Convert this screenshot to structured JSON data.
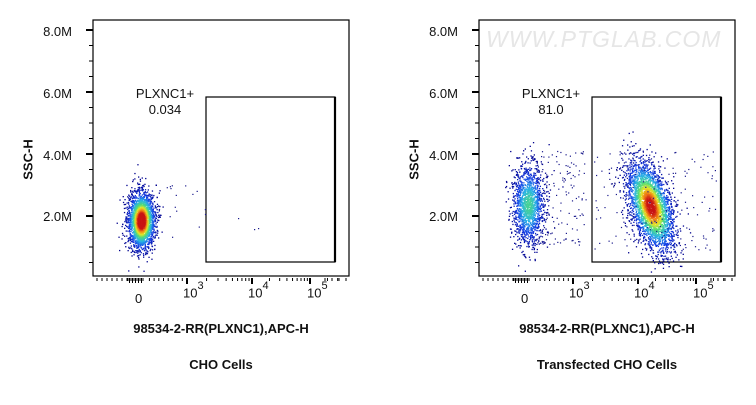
{
  "chart_data": [
    {
      "type": "scatter",
      "subtype": "flow-cytometry-density-plot",
      "title": "CHO Cells",
      "xlabel": "98534-2-RR(PLXNC1),APC-H",
      "ylabel": "SSC-H",
      "x_scale": "biexponential",
      "x_ticks": [
        "0",
        "10^3",
        "10^4",
        "10^5"
      ],
      "y_ticks": [
        "2.0M",
        "4.0M",
        "6.0M",
        "8.0M"
      ],
      "ylim": [
        0,
        8500000
      ],
      "gate": {
        "name": "PLXNC1+",
        "percent": 0.034,
        "x_range": [
          "~10^3",
          "~2x10^5"
        ],
        "y_range": [
          500000,
          5900000
        ]
      },
      "populations": [
        {
          "name": "negative",
          "x_center": "0",
          "y_center": 1600000,
          "y_spread": [
            800000,
            3100000
          ],
          "density": "high"
        }
      ],
      "grid": false,
      "legend": null
    },
    {
      "type": "scatter",
      "subtype": "flow-cytometry-density-plot",
      "title": "Transfected CHO Cells",
      "xlabel": "98534-2-RR(PLXNC1),APC-H",
      "ylabel": "SSC-H",
      "x_scale": "biexponential",
      "x_ticks": [
        "0",
        "10^3",
        "10^4",
        "10^5"
      ],
      "y_ticks": [
        "2.0M",
        "4.0M",
        "6.0M",
        "8.0M"
      ],
      "ylim": [
        0,
        8500000
      ],
      "gate": {
        "name": "PLXNC1+",
        "percent": 81.0,
        "x_range": [
          "~10^3",
          "~2x10^5"
        ],
        "y_range": [
          500000,
          5900000
        ]
      },
      "populations": [
        {
          "name": "negative",
          "x_center": "0",
          "y_center": 2500000,
          "y_spread": [
            700000,
            4100000
          ],
          "density": "medium"
        },
        {
          "name": "positive",
          "x_center": "~1.5x10^4",
          "y_center": 2200000,
          "y_spread": [
            500000,
            4100000
          ],
          "density": "high"
        }
      ],
      "grid": false,
      "legend": null
    }
  ],
  "panels": [
    {
      "y_ticks": [
        "8.0M",
        "6.0M",
        "4.0M",
        "2.0M"
      ],
      "y_label": "SSC-H",
      "x_ticks": {
        "zero": "0",
        "base": "10",
        "exps": [
          "3",
          "4",
          "5"
        ]
      },
      "x_label": "98534-2-RR(PLXNC1),APC-H",
      "caption": "CHO Cells",
      "gate_name": "PLXNC1+",
      "gate_value": "0.034"
    },
    {
      "y_ticks": [
        "8.0M",
        "6.0M",
        "4.0M",
        "2.0M"
      ],
      "y_label": "SSC-H",
      "x_ticks": {
        "zero": "0",
        "base": "10",
        "exps": [
          "3",
          "4",
          "5"
        ]
      },
      "x_label": "98534-2-RR(PLXNC1),APC-H",
      "caption": "Transfected CHO Cells",
      "gate_name": "PLXNC1+",
      "gate_value": "81.0",
      "watermark": "WWW.PTGLAB.COM"
    }
  ]
}
